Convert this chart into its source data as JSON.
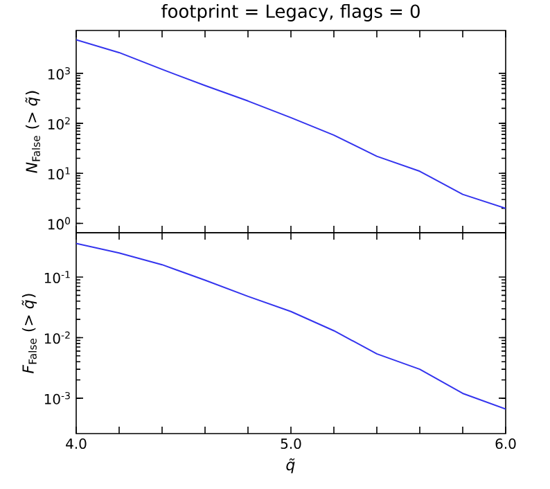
{
  "chart_data": [
    {
      "type": "line",
      "title": "footprint = Legacy, flags = 0",
      "ylabel": "*N*$_{False}$ (> *q̃*)",
      "log": true,
      "tick_labels": "y",
      "x": [
        4.0,
        4.2,
        4.4,
        4.6,
        4.8,
        5.0,
        5.2,
        5.4,
        5.6,
        5.8,
        6.0
      ],
      "series": [
        {
          "color": "#3333ee",
          "values": [
            4700,
            2600,
            1200,
            570,
            280,
            130,
            58,
            22,
            11,
            3.8,
            2.0
          ]
        }
      ],
      "xlim": [
        4,
        6
      ],
      "ylim": [
        0.65,
        7200
      ],
      "xticks": [
        {
          "value": 4,
          "label": null
        },
        {
          "value": 4.2,
          "label": null
        },
        {
          "value": 4.4,
          "label": null
        },
        {
          "value": 4.6,
          "label": null
        },
        {
          "value": 4.8,
          "label": null
        },
        {
          "value": 5,
          "label": null
        },
        {
          "value": 5.2,
          "label": null
        },
        {
          "value": 5.4,
          "label": null
        },
        {
          "value": 5.6,
          "label": null
        },
        {
          "value": 5.8,
          "label": null
        },
        {
          "value": 6,
          "label": null
        }
      ],
      "yticks": [
        {
          "value": 1,
          "label": "10$^{0}$"
        },
        {
          "value": 10,
          "label": "10$^{1}$"
        },
        {
          "value": 100,
          "label": "10$^{2}$"
        },
        {
          "value": 1000,
          "label": "10$^{3}$"
        }
      ]
    },
    {
      "type": "line",
      "xlabel": "*q̃*",
      "ylabel": "*F*$_{False}$ (> *q̃*)",
      "log": true,
      "x": [
        4.0,
        4.2,
        4.4,
        4.6,
        4.8,
        5.0,
        5.2,
        5.4,
        5.6,
        5.8,
        6.0
      ],
      "series": [
        {
          "color": "#3333ee",
          "values": [
            0.36,
            0.25,
            0.16,
            0.089,
            0.048,
            0.027,
            0.013,
            0.0054,
            0.003,
            0.0012,
            0.00066
          ]
        }
      ],
      "xlim": [
        4,
        6
      ],
      "ylim": [
        0.00026,
        0.54
      ],
      "xticks": [
        {
          "value": 4,
          "label": "4.0"
        },
        {
          "value": 4.2,
          "label": null
        },
        {
          "value": 4.4,
          "label": null
        },
        {
          "value": 4.6,
          "label": null
        },
        {
          "value": 4.8,
          "label": null
        },
        {
          "value": 5,
          "label": "5.0"
        },
        {
          "value": 5.2,
          "label": null
        },
        {
          "value": 5.4,
          "label": null
        },
        {
          "value": 5.6,
          "label": null
        },
        {
          "value": 5.8,
          "label": null
        },
        {
          "value": 6,
          "label": "6.0"
        }
      ],
      "yticks": [
        {
          "value": 0.001,
          "label": "10$^{-3}$"
        },
        {
          "value": 0.01,
          "label": "10$^{-2}$"
        },
        {
          "value": 0.1,
          "label": "10$^{-1}$"
        }
      ]
    }
  ]
}
